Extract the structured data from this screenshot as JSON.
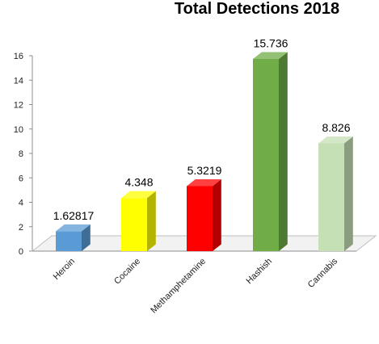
{
  "chart_data": {
    "type": "bar",
    "title": "Total Detections 2018",
    "xlabel": "",
    "ylabel": "",
    "ylim": [
      0,
      16
    ],
    "yticks": [
      0,
      2,
      4,
      6,
      8,
      10,
      12,
      14,
      16
    ],
    "categories": [
      "Heroin",
      "Cocaine",
      "Methamphetamine",
      "Hashish",
      "Cannabis"
    ],
    "values": [
      1.62817,
      4.348,
      5.3219,
      15.736,
      8.826
    ],
    "data_labels": [
      "1.62817",
      "4.348",
      "5.3219",
      "15.736",
      "8.826"
    ],
    "colors": [
      "#5b9bd5",
      "#ffff00",
      "#ff0000",
      "#70ad47",
      "#c5e0b4"
    ],
    "style": "3d-column",
    "grid": false,
    "legend": "none"
  }
}
